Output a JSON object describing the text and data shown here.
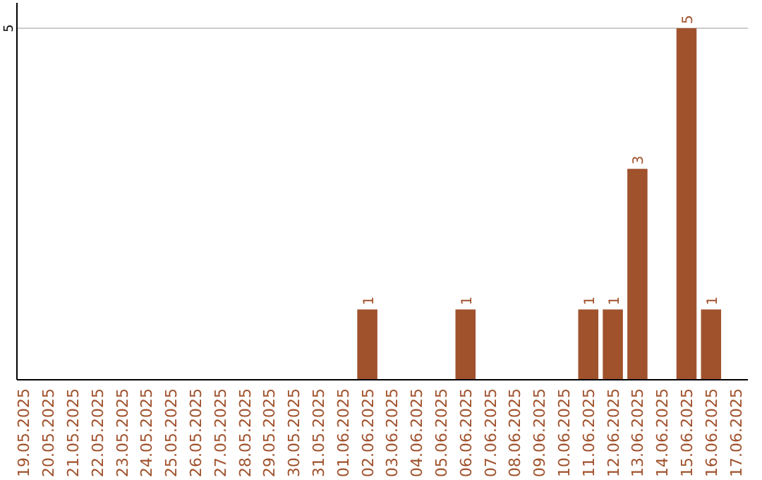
{
  "chart_data": {
    "type": "bar",
    "categories": [
      "19.05.2025",
      "20.05.2025",
      "21.05.2025",
      "22.05.2025",
      "23.05.2025",
      "24.05.2025",
      "25.05.2025",
      "26.05.2025",
      "27.05.2025",
      "28.05.2025",
      "29.05.2025",
      "30.05.2025",
      "31.05.2025",
      "01.06.2025",
      "02.06.2025",
      "03.06.2025",
      "04.06.2025",
      "05.06.2025",
      "06.06.2025",
      "07.06.2025",
      "08.06.2025",
      "09.06.2025",
      "10.06.2025",
      "11.06.2025",
      "12.06.2025",
      "13.06.2025",
      "14.06.2025",
      "15.06.2025",
      "16.06.2025",
      "17.06.2025"
    ],
    "values": [
      null,
      null,
      null,
      null,
      null,
      null,
      null,
      null,
      null,
      null,
      null,
      null,
      null,
      null,
      1,
      null,
      null,
      null,
      1,
      null,
      null,
      null,
      null,
      1,
      1,
      3,
      null,
      5,
      1,
      null
    ],
    "data_labels": true,
    "color": "#a0522d",
    "ylim": [
      0,
      5
    ],
    "yticks": [
      5
    ],
    "ref_lines": [
      {
        "axis": "y",
        "value": 5,
        "color": "#cccccc"
      }
    ]
  }
}
